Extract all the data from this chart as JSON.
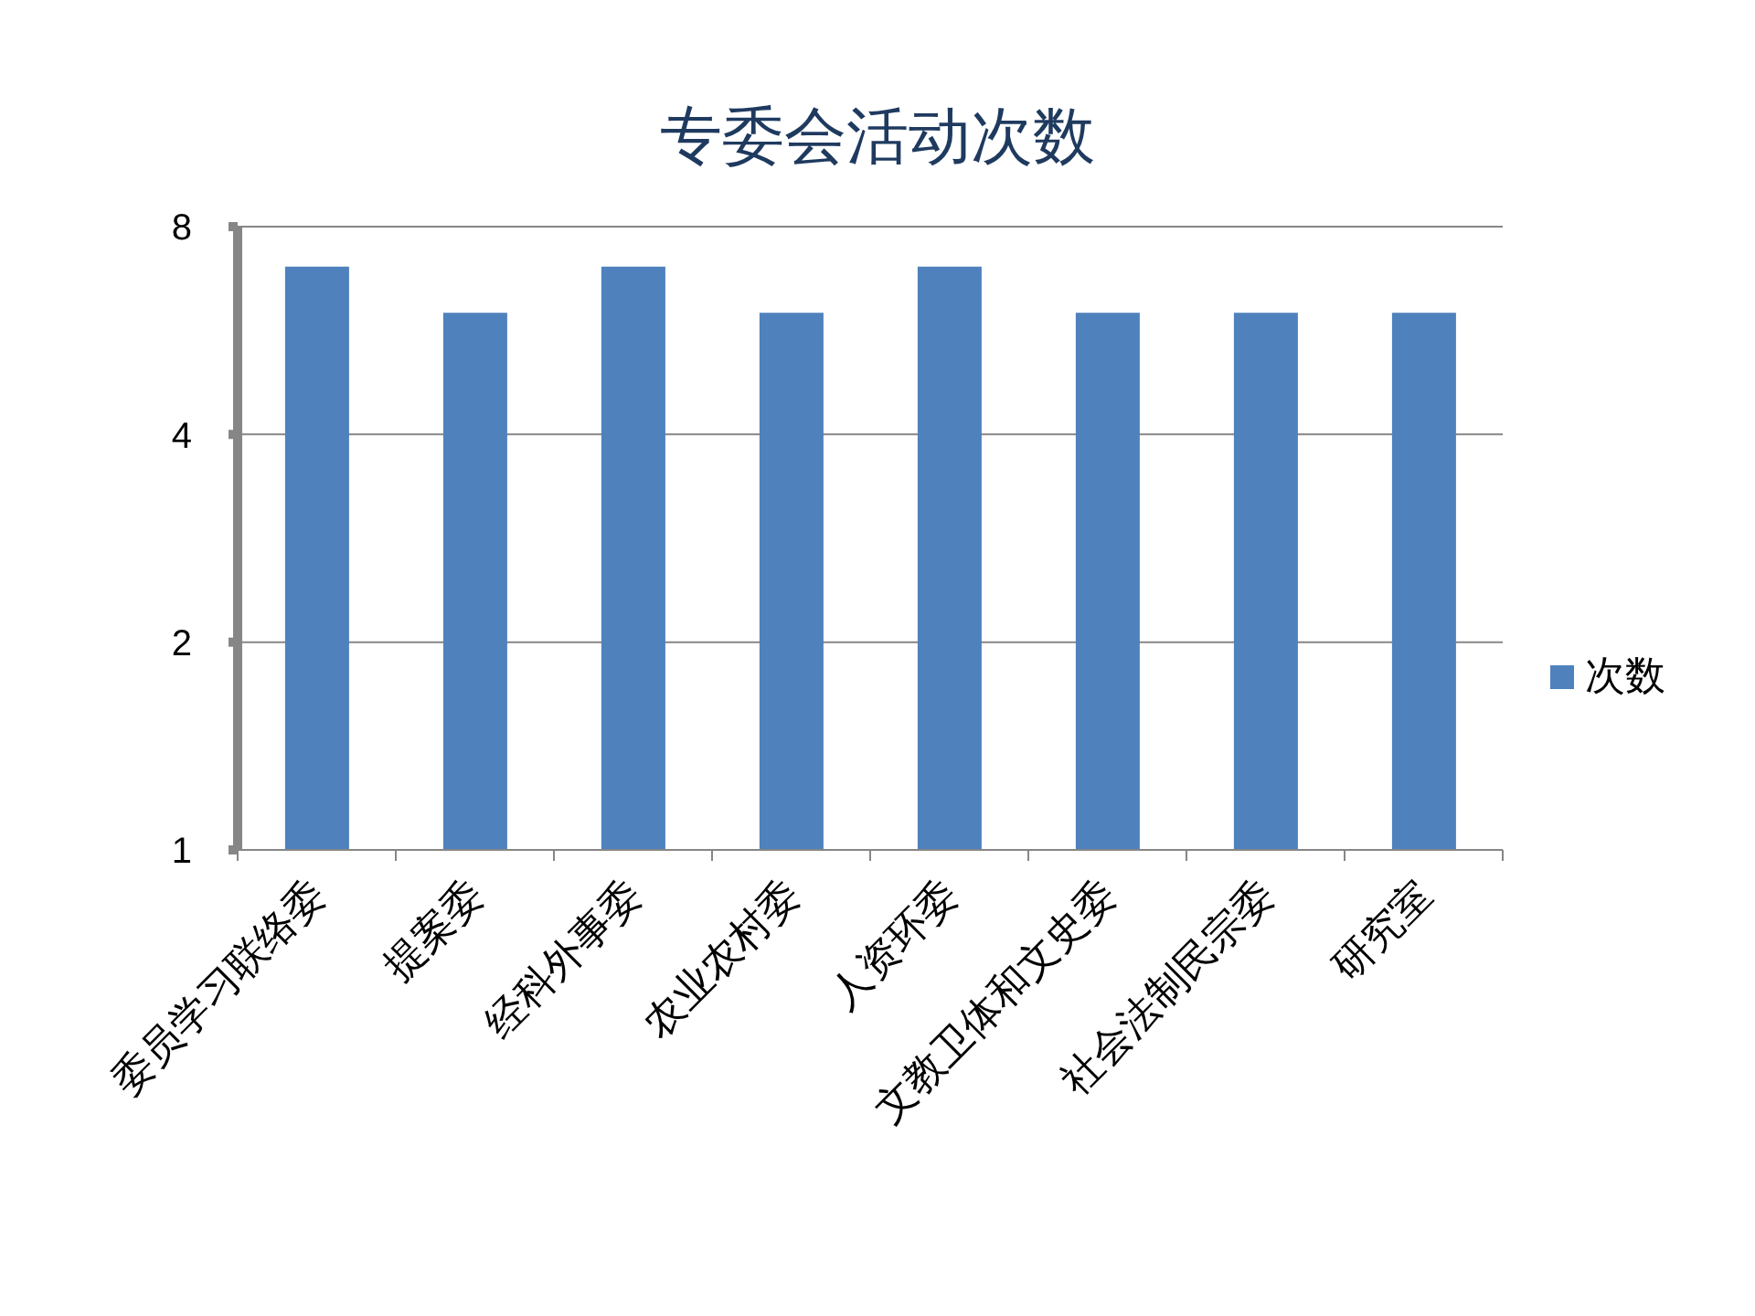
{
  "chart_data": {
    "type": "bar",
    "title": "专委会活动次数",
    "categories": [
      "委员学习联络委",
      "提案委",
      "经科外事委",
      "农业农村委",
      "人资环委",
      "文教卫体和文史委",
      "社会法制民宗委",
      "研究室"
    ],
    "series": [
      {
        "name": "次数",
        "color": "#4f81bd",
        "values": [
          7,
          6,
          7,
          6,
          7,
          6,
          6,
          6
        ]
      }
    ],
    "ylim": [
      1,
      8
    ],
    "yticks": [
      1,
      2,
      4,
      8
    ],
    "log": true,
    "grid": "y",
    "legend": "right"
  }
}
